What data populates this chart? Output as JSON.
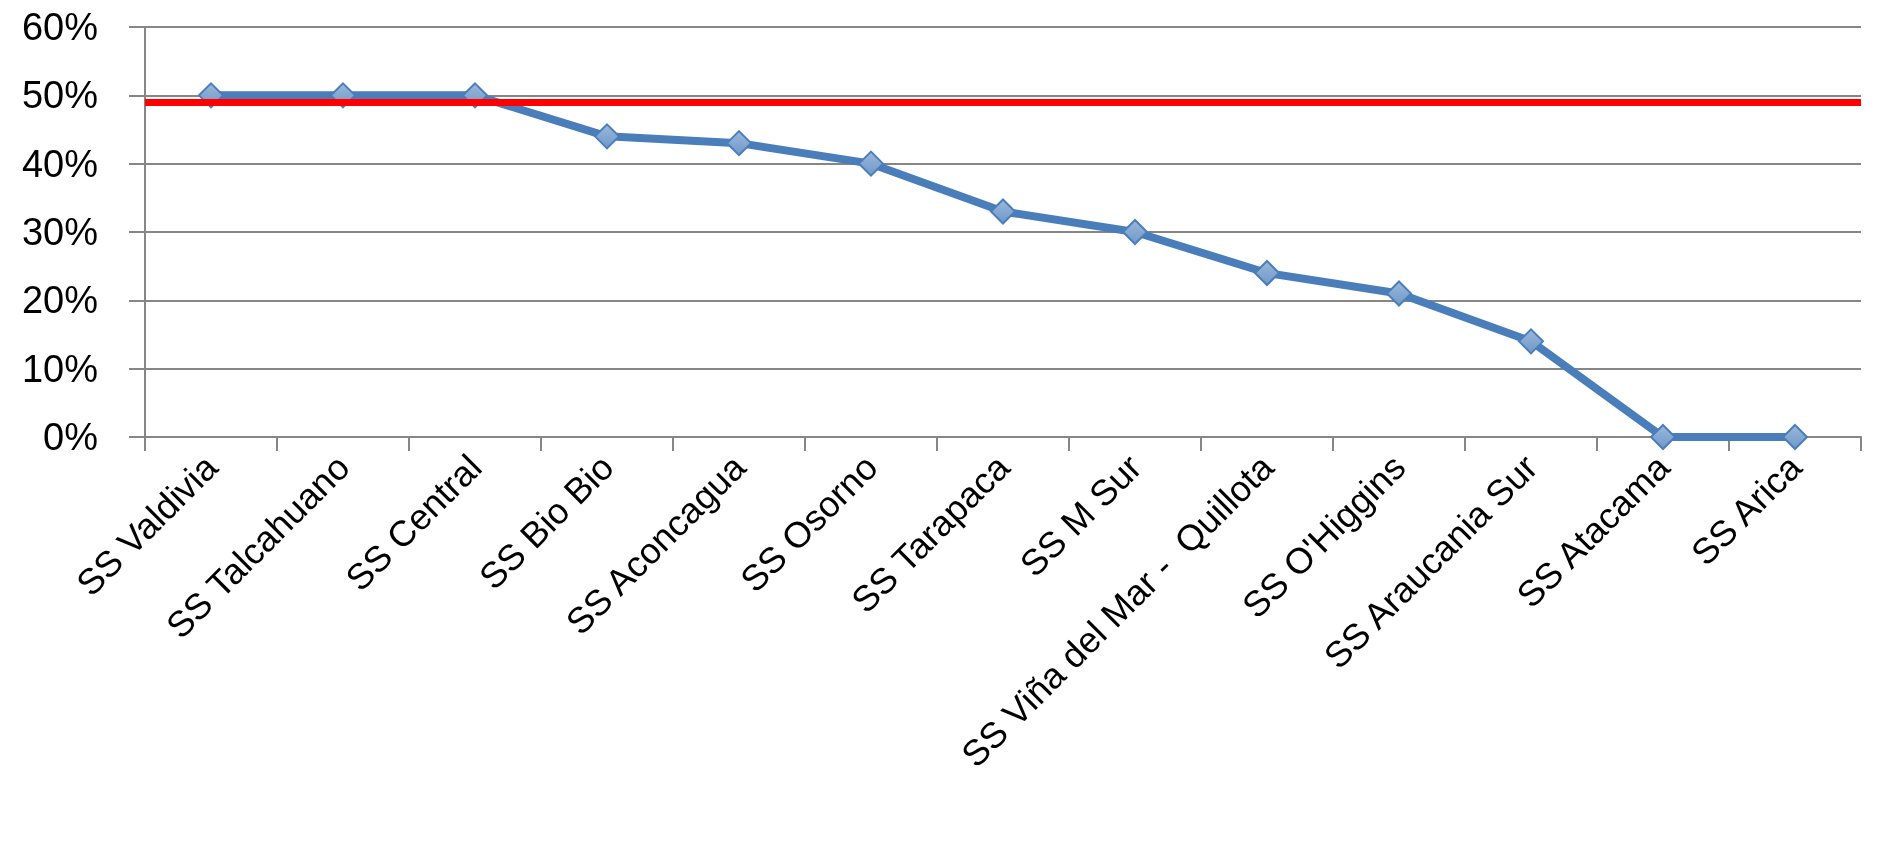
{
  "chart_data": {
    "type": "line",
    "categories": [
      "SS Valdivia",
      "SS Talcahuano",
      "SS Central",
      "SS Bio Bio",
      "SS Aconcagua",
      "SS Osorno",
      "SS Tarapaca",
      "SS M Sur",
      "SS Viña del Mar -  Quillota",
      "SS O'Higgins",
      "SS Araucania Sur",
      "SS Atacama",
      "SS Arica"
    ],
    "values": [
      50,
      50,
      50,
      44,
      43,
      40,
      33,
      30,
      24,
      21,
      14,
      0,
      0
    ],
    "color": "#4a7ebb",
    "ylim": [
      0,
      60
    ],
    "yticks": [
      {
        "value": 0,
        "label": "0%"
      },
      {
        "value": 10,
        "label": "10%"
      },
      {
        "value": 20,
        "label": "20%"
      },
      {
        "value": 30,
        "label": "30%"
      },
      {
        "value": 40,
        "label": "40%"
      },
      {
        "value": 50,
        "label": "50%"
      },
      {
        "value": 60,
        "label": "60%"
      }
    ],
    "ref_lines": [
      {
        "axis": "y",
        "value": 49,
        "color": "#ff0000",
        "line_style": "solid"
      }
    ],
    "grid": "y",
    "marker": "diamond",
    "line_style": "solid"
  }
}
